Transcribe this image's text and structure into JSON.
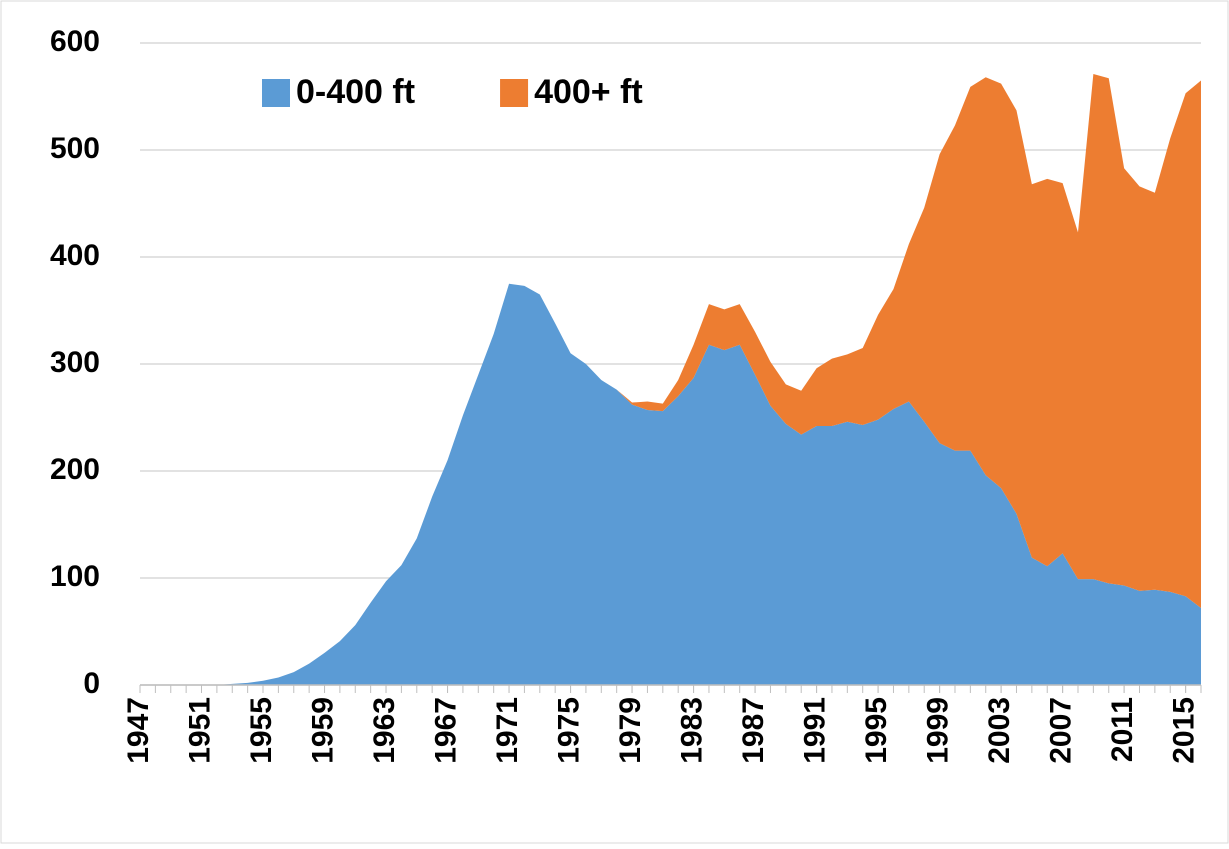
{
  "chart_data": {
    "type": "stacked_area",
    "x": [
      1947,
      1948,
      1949,
      1950,
      1951,
      1952,
      1953,
      1954,
      1955,
      1956,
      1957,
      1958,
      1959,
      1960,
      1961,
      1962,
      1963,
      1964,
      1965,
      1966,
      1967,
      1968,
      1969,
      1970,
      1971,
      1972,
      1973,
      1974,
      1975,
      1976,
      1977,
      1978,
      1979,
      1980,
      1981,
      1982,
      1983,
      1984,
      1985,
      1986,
      1987,
      1988,
      1989,
      1990,
      1991,
      1992,
      1993,
      1994,
      1995,
      1996,
      1997,
      1998,
      1999,
      2000,
      2001,
      2002,
      2003,
      2004,
      2005,
      2006,
      2007,
      2008,
      2009,
      2010,
      2011,
      2012,
      2013,
      2014,
      2015,
      2016
    ],
    "series": [
      {
        "name": "0-400 ft",
        "color": "#5b9bd5",
        "values": [
          0,
          0,
          0,
          0,
          0,
          0,
          1,
          2,
          4,
          7,
          12,
          20,
          30,
          41,
          56,
          77,
          97,
          112,
          137,
          176,
          210,
          252,
          290,
          328,
          375,
          373,
          365,
          338,
          310,
          300,
          285,
          276,
          262,
          257,
          256,
          270,
          287,
          318,
          313,
          318,
          290,
          261,
          244,
          234,
          242,
          242,
          246,
          243,
          248,
          258,
          265,
          246,
          226,
          219,
          219,
          196,
          184,
          160,
          119,
          111,
          123,
          99,
          99,
          95,
          93,
          88,
          89,
          87,
          83,
          72
        ]
      },
      {
        "name": "400+ ft",
        "color": "#ed7d31",
        "values": [
          0,
          0,
          0,
          0,
          0,
          0,
          0,
          0,
          0,
          0,
          0,
          0,
          0,
          0,
          0,
          0,
          0,
          0,
          0,
          0,
          0,
          0,
          0,
          0,
          0,
          0,
          0,
          0,
          0,
          0,
          0,
          0,
          2,
          8,
          7,
          15,
          31,
          38,
          38,
          38,
          40,
          41,
          37,
          41,
          54,
          63,
          63,
          72,
          98,
          112,
          147,
          200,
          270,
          304,
          340,
          372,
          378,
          377,
          349,
          362,
          346,
          324,
          472,
          472,
          390,
          378,
          371,
          424,
          470,
          493
        ]
      }
    ],
    "xlim": [
      1947,
      2016
    ],
    "xticks": [
      1947,
      1951,
      1955,
      1959,
      1963,
      1967,
      1971,
      1975,
      1979,
      1983,
      1987,
      1991,
      1995,
      1999,
      2003,
      2007,
      2011,
      2015
    ],
    "ylim": [
      0,
      600
    ],
    "yticks": [
      0,
      100,
      200,
      300,
      400,
      500,
      600
    ],
    "grid": true,
    "legend": "top"
  }
}
